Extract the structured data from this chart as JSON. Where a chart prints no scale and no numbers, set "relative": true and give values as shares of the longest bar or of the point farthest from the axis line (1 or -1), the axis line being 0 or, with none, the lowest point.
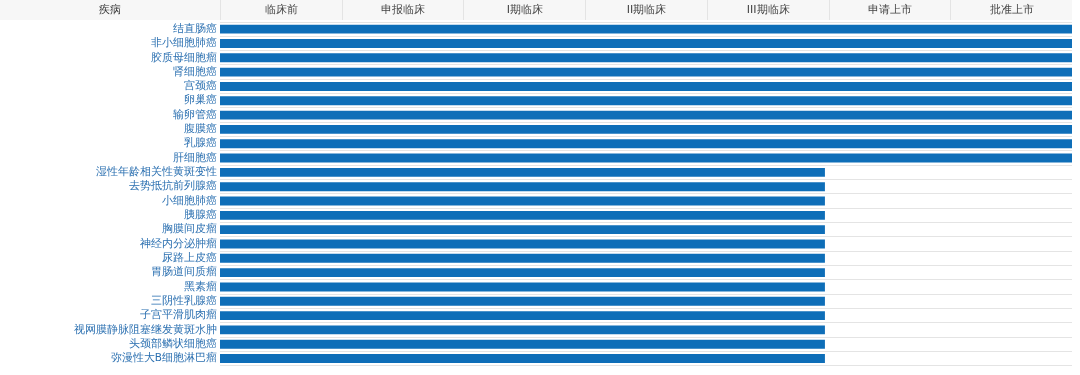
{
  "chart_data": {
    "type": "bar",
    "orientation": "horizontal",
    "ylabel": "疾病",
    "relative": true,
    "annotations": [
      "临床前",
      "申报临床",
      "I期临床",
      "II期临床",
      "III期临床",
      "申请上市",
      "批准上市"
    ],
    "categories": [
      "结直肠癌",
      "非小细胞肺癌",
      "胶质母细胞瘤",
      "肾细胞癌",
      "宫颈癌",
      "卵巢癌",
      "输卵管癌",
      "腹膜癌",
      "乳腺癌",
      "肝细胞癌",
      "湿性年龄相关性黄斑变性",
      "去势抵抗前列腺癌",
      "小细胞肺癌",
      "胰腺癌",
      "胸膜间皮瘤",
      "神经内分泌肿瘤",
      "尿路上皮癌",
      "胃肠道间质瘤",
      "黑素瘤",
      "三阴性乳腺癌",
      "子宫平滑肌肉瘤",
      "视网膜静脉阻塞继发黄斑水肿",
      "头颈部鳞状细胞癌",
      "弥漫性大B细胞淋巴瘤"
    ],
    "values": [
      1,
      1,
      1,
      1,
      1,
      1,
      1,
      1,
      1,
      1,
      0.71,
      0.71,
      0.71,
      0.71,
      0.71,
      0.71,
      0.71,
      0.71,
      0.71,
      0.71,
      0.71,
      0.71,
      0.71,
      0.71
    ],
    "color": "#0e6eb8",
    "grid": "y"
  }
}
